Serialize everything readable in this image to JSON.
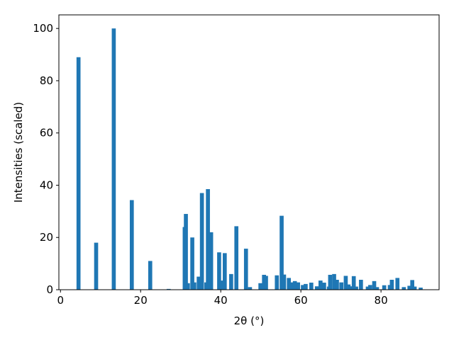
{
  "chart_data": {
    "type": "bar",
    "xlabel": "2θ (°)",
    "ylabel": "Intensities (scaled)",
    "color": "#1f77b4",
    "x": [
      4.5,
      8.9,
      13.3,
      17.8,
      22.4,
      27.0,
      31.0,
      31.3,
      31.8,
      32.9,
      33.4,
      34.5,
      35.3,
      36.4,
      36.8,
      37.6,
      39.6,
      40.3,
      41.0,
      42.6,
      43.9,
      46.3,
      47.3,
      49.9,
      50.8,
      51.3,
      54.0,
      55.2,
      55.8,
      57.0,
      57.6,
      58.5,
      59.3,
      60.5,
      61.2,
      62.6,
      64.0,
      64.9,
      65.8,
      67.0,
      67.3,
      68.3,
      69.0,
      70.1,
      71.2,
      71.9,
      72.4,
      73.2,
      73.8,
      75.0,
      76.7,
      77.3,
      78.3,
      79.0,
      80.8,
      82.2,
      82.7,
      84.1,
      85.7,
      87.1,
      87.8,
      88.4,
      89.9
    ],
    "values": [
      89,
      18,
      100,
      34.3,
      11,
      0.3,
      24,
      29,
      2.5,
      20,
      2.8,
      5,
      37,
      2.8,
      38.5,
      22,
      14.3,
      3.5,
      14,
      6,
      24.3,
      15.7,
      1,
      2.5,
      5.7,
      5.3,
      5.5,
      28.3,
      5.8,
      4.5,
      2.8,
      3.3,
      2.8,
      1.8,
      2.2,
      2.7,
      1.3,
      3.5,
      2.7,
      1.2,
      5.7,
      6,
      3.8,
      2.8,
      5.3,
      2,
      1.3,
      5.2,
      1.2,
      3.8,
      1.2,
      1.8,
      3.3,
      1,
      1.7,
      1.8,
      3.8,
      4.5,
      1,
      1.5,
      3.7,
      1.2,
      0.8
    ],
    "xlim": [
      -0.4,
      94.5
    ],
    "ylim": [
      0,
      105.2
    ],
    "xticks": [
      0,
      20,
      40,
      60,
      80
    ],
    "yticks": [
      0,
      20,
      40,
      60,
      80,
      100
    ]
  }
}
